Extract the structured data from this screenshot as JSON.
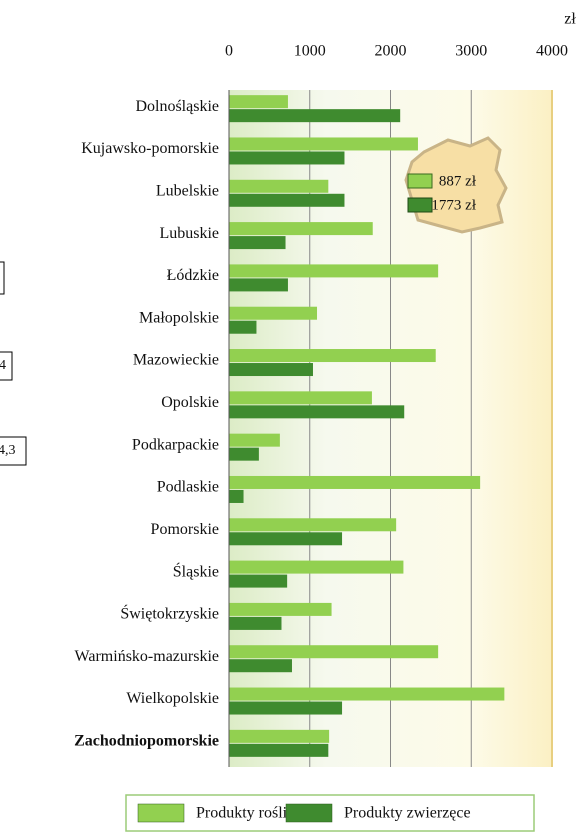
{
  "chart_data": {
    "type": "bar",
    "orientation": "horizontal",
    "unit": "zł",
    "categories": [
      "Dolnośląskie",
      "Kujawsko-pomorskie",
      "Lubelskie",
      "Lubuskie",
      "Łódzkie",
      "Małopolskie",
      "Mazowieckie",
      "Opolskie",
      "Podkarpackie",
      "Podlaskie",
      "Pomorskie",
      "Śląskie",
      "Świętokrzyskie",
      "Warmińsko-mazurskie",
      "Wielkopolskie",
      "Zachodniopomorskie"
    ],
    "highlight": "Zachodniopomorskie",
    "series": [
      {
        "name": "Produkty roślinne",
        "color": "#92d050",
        "values": [
          730,
          2340,
          1230,
          1780,
          2590,
          1090,
          2560,
          1770,
          630,
          3110,
          2070,
          2160,
          1270,
          2590,
          3410,
          1240
        ]
      },
      {
        "name": "Produkty zwierzęce",
        "color": "#3f8b2f",
        "values": [
          2120,
          1430,
          1430,
          700,
          730,
          340,
          1040,
          2170,
          370,
          180,
          1400,
          720,
          650,
          780,
          1400,
          1230
        ]
      }
    ],
    "xlim": [
      0,
      4000
    ],
    "xticks": [
      0,
      1000,
      2000,
      3000,
      4000
    ],
    "grid": true,
    "inset_labels": [
      "887 zł",
      "1773 zł"
    ],
    "edge_fragments": [
      "4",
      "4,3"
    ]
  }
}
